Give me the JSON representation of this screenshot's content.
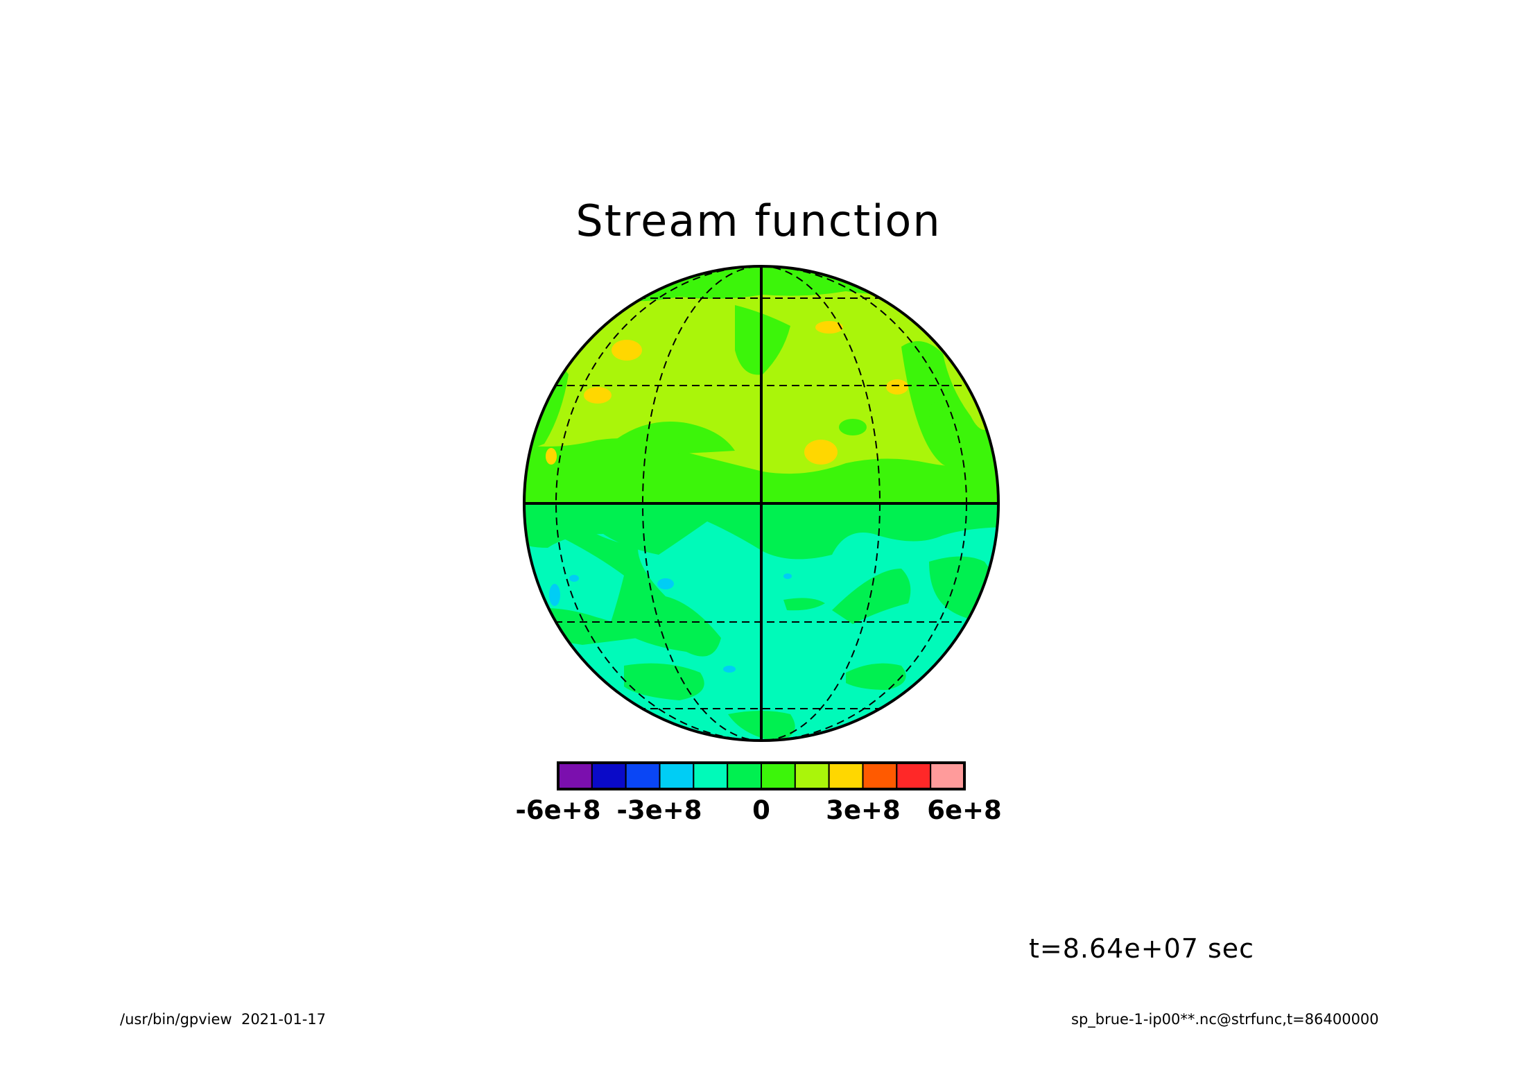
{
  "chart_data": {
    "type": "heatmap",
    "title": "Stream function",
    "projection": "orthographic",
    "xlabel": "",
    "ylabel": "",
    "grid": true,
    "levels": [
      -600000000.0,
      -500000000.0,
      -400000000.0,
      -300000000.0,
      -200000000.0,
      -100000000.0,
      0,
      100000000.0,
      200000000.0,
      300000000.0,
      400000000.0,
      500000000.0,
      600000000.0
    ],
    "colors": [
      "#7b0fae",
      "#0a0ac8",
      "#0a46f5",
      "#00cdf5",
      "#00fab9",
      "#00f050",
      "#3cf50a",
      "#aaf50a",
      "#ffd700",
      "#ff5a00",
      "#ff2828",
      "#ff9b9b"
    ],
    "colorbar_tick_values": [
      -600000000.0,
      -300000000.0,
      0,
      300000000.0,
      600000000.0
    ],
    "colorbar_tick_labels": [
      "-6e+8",
      "-3e+8",
      "0",
      "3e+8",
      "6e+8"
    ],
    "time_label": "t=8.64e+07 sec"
  },
  "footer": {
    "left": "/usr/bin/gpview  2021-01-17",
    "right": "sp_brue-1-ip00**.nc@strfunc,t=86400000"
  }
}
